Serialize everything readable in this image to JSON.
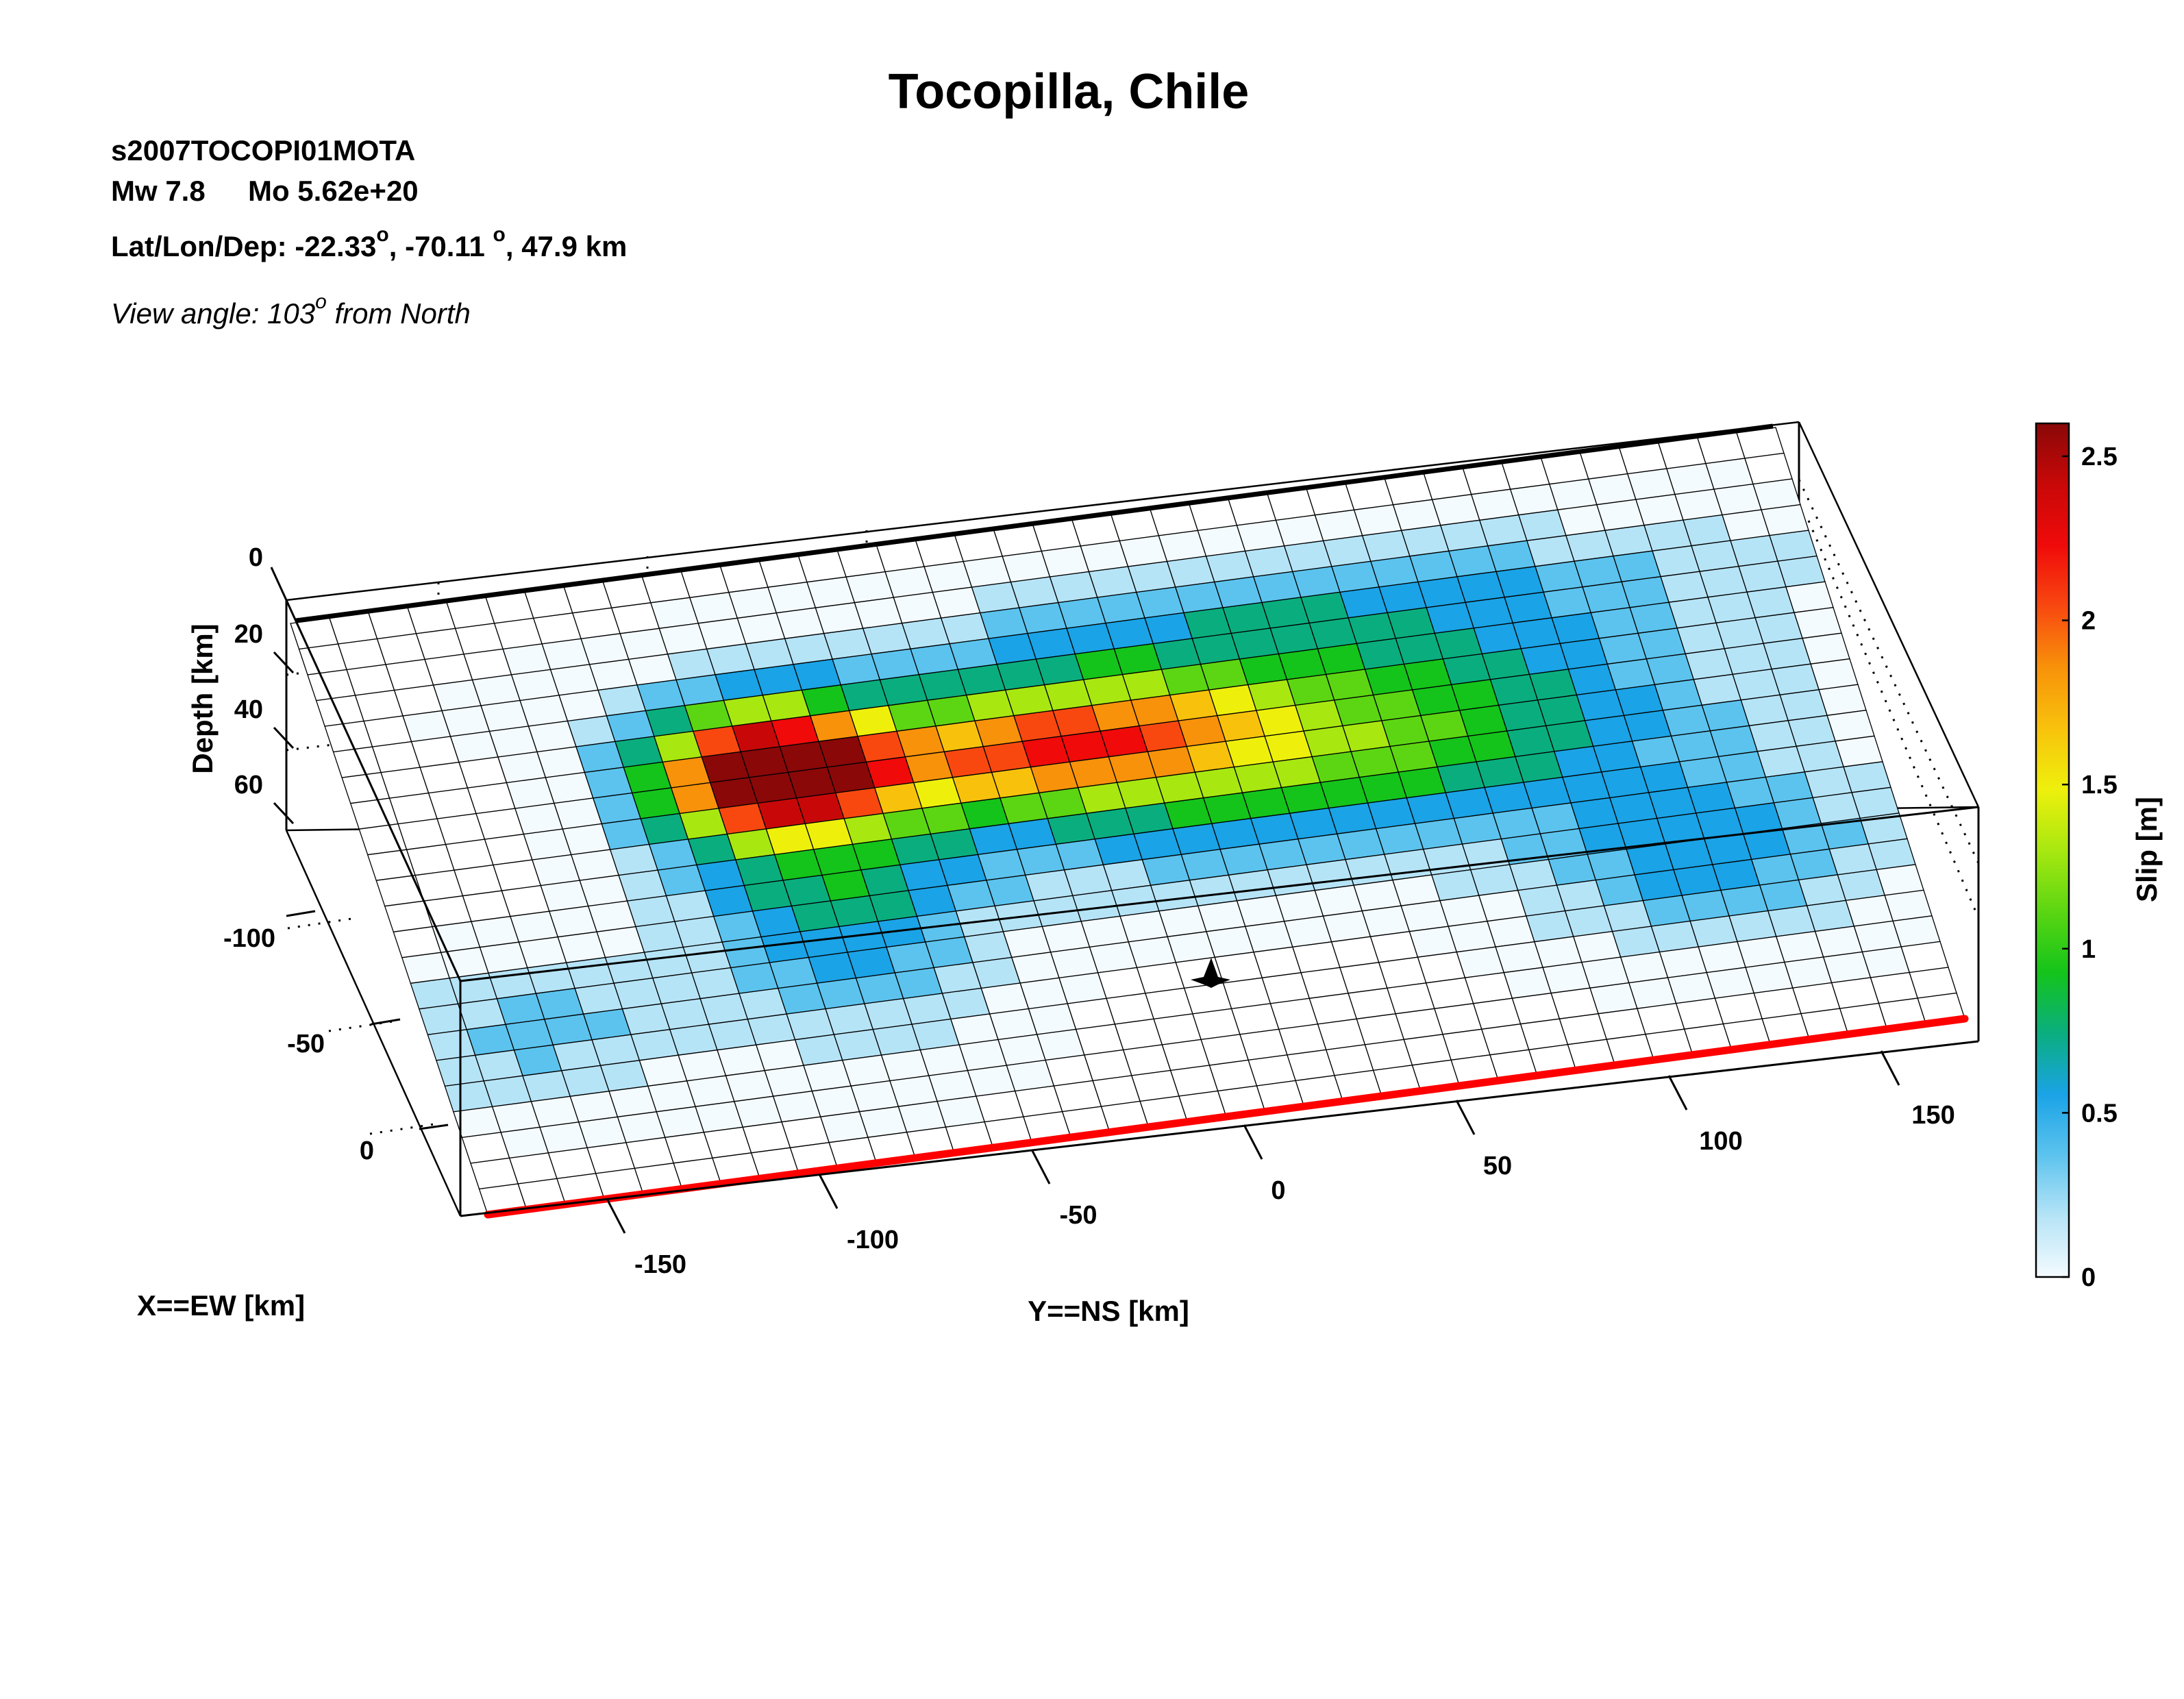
{
  "header": {
    "title": "Tocopilla, Chile",
    "event_id": "s2007TOCOPI01MOTA",
    "magnitude": "Mw 7.8",
    "moment": "Mo 5.62e+20",
    "location_prefix": "Lat/Lon/Dep: ",
    "lat": "-22.33",
    "lon": "-70.11 ",
    "depth": ", 47.9 km",
    "comma": ", ",
    "degree_sup": "o",
    "view_prefix": "View angle: 103",
    "view_suffix": " from North"
  },
  "chart_data": {
    "type": "heatmap",
    "xlabel": "X==EW [km]",
    "ylabel": "Y==NS [km]",
    "zlabel": "Depth [km]",
    "colorbar_label": "Slip [m]",
    "x_ticks": [
      "-100",
      "-50",
      "0"
    ],
    "y_ticks": [
      "-150",
      "-100",
      "-50",
      "0",
      "50",
      "100",
      "150"
    ],
    "z_ticks": [
      "0",
      "20",
      "40",
      "60"
    ],
    "colorbar_ticks": [
      "0",
      "0.5",
      "1",
      "1.5",
      "2",
      "2.5"
    ],
    "colorbar_range": [
      0,
      2.6
    ],
    "colormap": [
      "#f4fbfe",
      "#b6e4f7",
      "#5cc3ee",
      "#1aa3e6",
      "#0aae7e",
      "#14c41a",
      "#5cd612",
      "#a8e810",
      "#eef00c",
      "#f8c20c",
      "#f8920a",
      "#f84810",
      "#f00a0a",
      "#c80808",
      "#8a0808"
    ],
    "fault_grid": {
      "along_strike_cells": 38,
      "down_dip_cells": 23
    },
    "slip_description": "Main slip patch near along-strike -110 km with peak about 2.6 m; secondary patches around 0 km (about 1.6 m) and 130 km (about 0.6 m)",
    "hypocenter": {
      "along_strike_km": 0,
      "label": ""
    },
    "trench_color": "#ff0000"
  }
}
